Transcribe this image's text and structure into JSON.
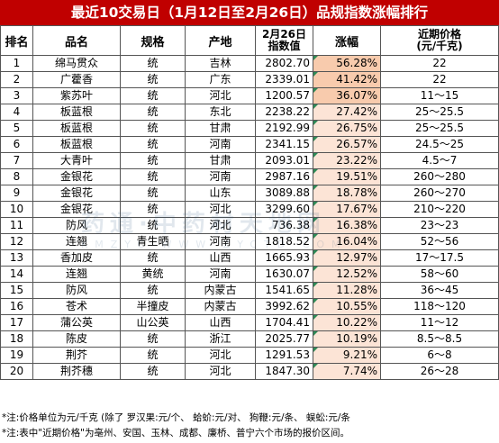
{
  "title": "最近10交易日（1月12日至2月26日）品规指数涨幅排行",
  "headers": {
    "rank": "排名",
    "name": "品名",
    "spec": "规格",
    "origin": "产地",
    "index_line1": "2月26日",
    "index_line2": "指数值",
    "change": "涨幅",
    "price_line1": "近期价格",
    "price_line2": "(元/千克)"
  },
  "rows": [
    {
      "rank": "1",
      "name": "绵马贯众",
      "spec": "统",
      "origin": "吉林",
      "index": "2802.70",
      "change": "56.28%",
      "price": "22"
    },
    {
      "rank": "2",
      "name": "广藿香",
      "spec": "统",
      "origin": "广东",
      "index": "2339.01",
      "change": "41.42%",
      "price": "22"
    },
    {
      "rank": "3",
      "name": "紫苏叶",
      "spec": "统",
      "origin": "河北",
      "index": "1200.57",
      "change": "36.07%",
      "price": "11～15"
    },
    {
      "rank": "4",
      "name": "板蓝根",
      "spec": "统",
      "origin": "东北",
      "index": "2238.22",
      "change": "27.42%",
      "price": "25～25.5"
    },
    {
      "rank": "5",
      "name": "板蓝根",
      "spec": "统",
      "origin": "甘肃",
      "index": "2192.99",
      "change": "26.75%",
      "price": "25～25.5"
    },
    {
      "rank": "6",
      "name": "板蓝根",
      "spec": "统",
      "origin": "河南",
      "index": "2341.15",
      "change": "26.57%",
      "price": "24.5～25"
    },
    {
      "rank": "7",
      "name": "大青叶",
      "spec": "统",
      "origin": "甘肃",
      "index": "2093.01",
      "change": "23.22%",
      "price": "4.5～7"
    },
    {
      "rank": "8",
      "name": "金银花",
      "spec": "统",
      "origin": "河南",
      "index": "2987.16",
      "change": "19.51%",
      "price": "260～280"
    },
    {
      "rank": "9",
      "name": "金银花",
      "spec": "统",
      "origin": "山东",
      "index": "3089.88",
      "change": "18.78%",
      "price": "260～270"
    },
    {
      "rank": "10",
      "name": "金银花",
      "spec": "统",
      "origin": "河北",
      "index": "3299.60",
      "change": "17.67%",
      "price": "210～220"
    },
    {
      "rank": "11",
      "name": "防风",
      "spec": "统",
      "origin": "河北",
      "index": "736.38",
      "change": "16.38%",
      "price": "23～23"
    },
    {
      "rank": "12",
      "name": "连翘",
      "spec": "青生晒",
      "origin": "河南",
      "index": "1818.52",
      "change": "16.04%",
      "price": "52～56"
    },
    {
      "rank": "13",
      "name": "香加皮",
      "spec": "统",
      "origin": "山西",
      "index": "1665.93",
      "change": "12.97%",
      "price": "17～17.5"
    },
    {
      "rank": "14",
      "name": "连翘",
      "spec": "黄统",
      "origin": "河南",
      "index": "1630.07",
      "change": "12.52%",
      "price": "58～60"
    },
    {
      "rank": "15",
      "name": "防风",
      "spec": "统",
      "origin": "内蒙古",
      "index": "1541.65",
      "change": "11.28%",
      "price": "36～45"
    },
    {
      "rank": "16",
      "name": "苍术",
      "spec": "半撞皮",
      "origin": "内蒙古",
      "index": "3992.62",
      "change": "10.55%",
      "price": "118～120"
    },
    {
      "rank": "17",
      "name": "蒲公英",
      "spec": "山公英",
      "origin": "山西",
      "index": "1704.41",
      "change": "10.22%",
      "price": "11～12"
    },
    {
      "rank": "18",
      "name": "陈皮",
      "spec": "统",
      "origin": "浙江",
      "index": "2025.77",
      "change": "10.19%",
      "price": "8.5～8.5"
    },
    {
      "rank": "19",
      "name": "荆芥",
      "spec": "统",
      "origin": "河北",
      "index": "1291.53",
      "change": "9.21%",
      "price": "6～8"
    },
    {
      "rank": "20",
      "name": "荆芥穗",
      "spec": "统",
      "origin": "河北",
      "index": "1847.30",
      "change": "7.74%",
      "price": "26～28"
    }
  ],
  "watermark": {
    "line1": "药通·中药材天地网",
    "line2": "KMZYC WWW ZYCTD COM"
  },
  "notes": [
    "*注:价格单位为元/千克 (除了  罗汉果:元/个、  蛤蚧:元/对、  狗鞭:元/条、  蜈蚣:元/条",
    "*注:表中\"近期价格\"为亳州、安国、玉林、成都、廉桥、普宁六个市场的报价区间。"
  ]
}
